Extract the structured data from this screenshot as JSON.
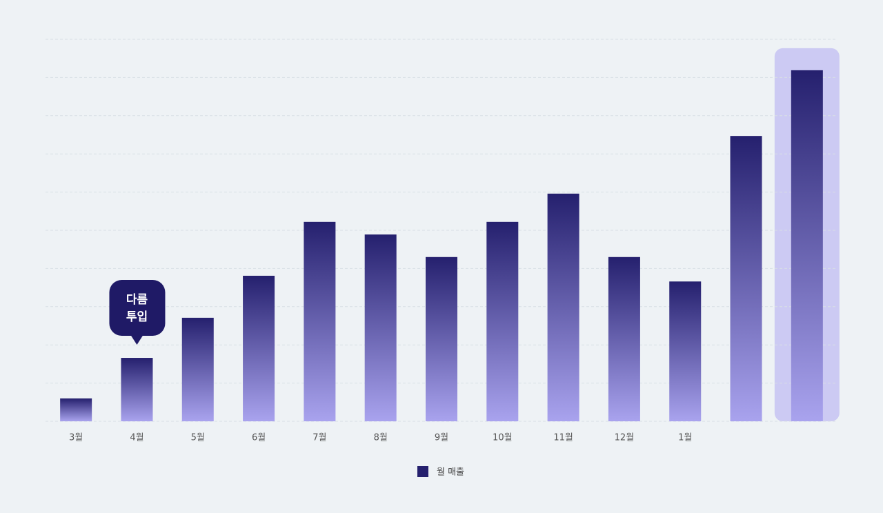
{
  "chart_data": {
    "type": "bar",
    "categories": [
      "3월",
      "4월",
      "5월",
      "6월",
      "7월",
      "8월",
      "9월",
      "10월",
      "11월",
      "12월",
      "1월",
      null,
      null
    ],
    "series": [
      {
        "name": "월 매출",
        "color": "#25206e",
        "values": [
          6.0,
          16.6,
          27.1,
          38.1,
          52.2,
          48.9,
          43.0,
          52.2,
          59.6,
          43.0,
          36.6,
          74.7,
          91.9
        ]
      }
    ],
    "ylim": [
      0,
      100
    ],
    "yticks": [
      0,
      10,
      20,
      30,
      40,
      50,
      60,
      70,
      80,
      90,
      100
    ],
    "grid": true,
    "highlight_index": 12,
    "annotation": {
      "index": 1,
      "lines": [
        "다름",
        "투입"
      ]
    },
    "legend": "bottom"
  }
}
